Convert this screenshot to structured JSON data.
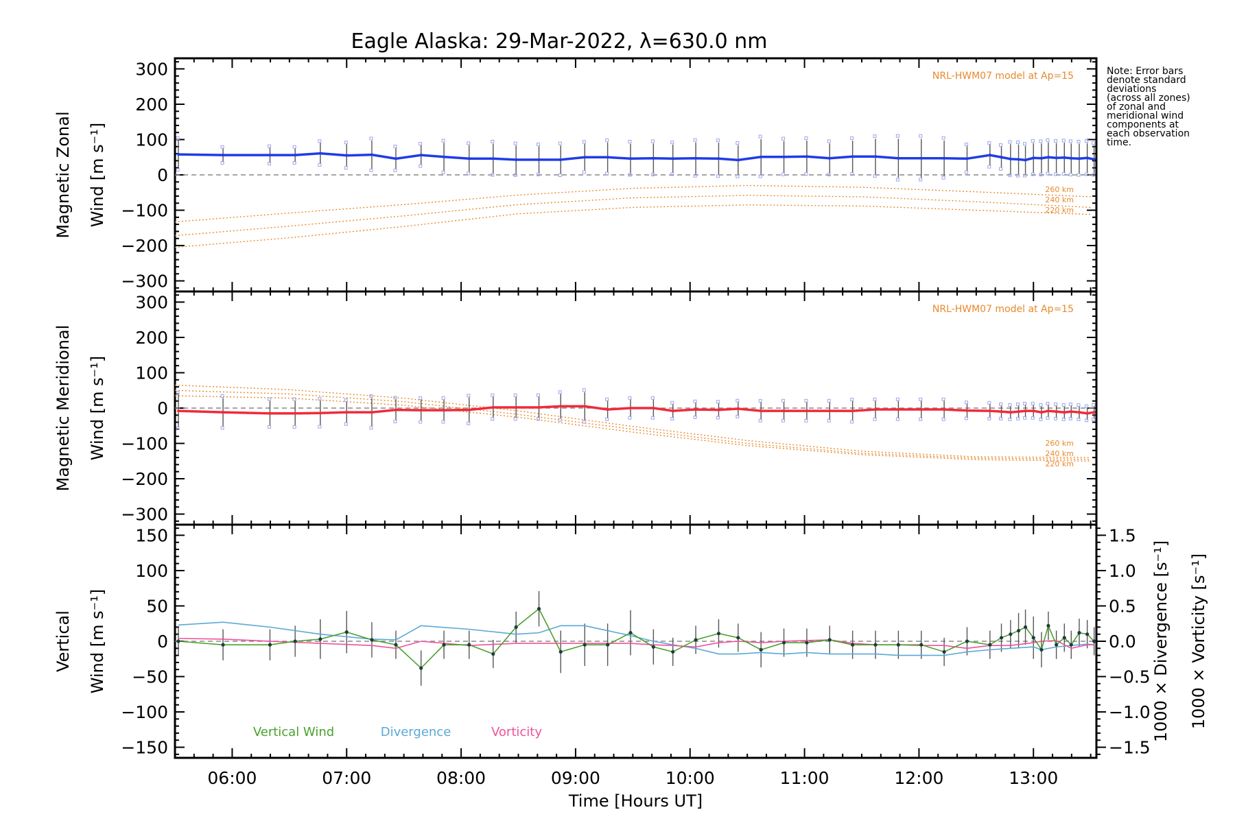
{
  "title": "Eagle Alaska: 29-Mar-2022, λ=630.0 nm",
  "note": [
    "Note: Error bars",
    "denote standard",
    "deviations",
    "(across all zones)",
    "of zonal and",
    "meridional wind",
    "components at",
    "each observation",
    "time."
  ],
  "colors": {
    "zonal": "#1f3be8",
    "meridional": "#f02a3a",
    "model": "#e8892b",
    "vertical": "#4aa02c",
    "divergence": "#5aa8d8",
    "vorticity": "#f0509a",
    "errorbar": "#555555",
    "zone": "#9aa6ee"
  },
  "chart_data": [
    {
      "type": "line",
      "panel": "zonal",
      "ylabel_line1": "Magnetic Zonal",
      "ylabel_line2": "Wind [m s⁻¹]",
      "model_label": "NRL-HWM07 model at Ap=15",
      "ylim": [
        -330,
        330
      ],
      "yticks": [
        "300",
        "200",
        "100",
        "0",
        "−100",
        "−200",
        "−300"
      ],
      "ytick_values": [
        300,
        200,
        100,
        0,
        -100,
        -200,
        -300
      ],
      "x": [
        5.53,
        5.92,
        6.33,
        6.55,
        6.77,
        7.0,
        7.22,
        7.43,
        7.65,
        7.85,
        8.07,
        8.28,
        8.48,
        8.68,
        8.87,
        9.08,
        9.28,
        9.48,
        9.68,
        9.85,
        10.05,
        10.25,
        10.42,
        10.62,
        10.82,
        11.02,
        11.22,
        11.42,
        11.62,
        11.82,
        12.02,
        12.22,
        12.42,
        12.62,
        12.72,
        12.8,
        12.87,
        12.93,
        13.0,
        13.07,
        13.13,
        13.2,
        13.27,
        13.33,
        13.4,
        13.47,
        13.53
      ],
      "values": [
        58,
        56,
        56,
        56,
        61,
        55,
        57,
        46,
        56,
        51,
        46,
        46,
        43,
        43,
        43,
        50,
        50,
        46,
        47,
        46,
        47,
        46,
        42,
        51,
        51,
        52,
        47,
        52,
        52,
        47,
        47,
        47,
        46,
        56,
        50,
        45,
        44,
        42,
        48,
        47,
        50,
        48,
        49,
        47,
        46,
        48,
        44
      ],
      "errors": [
        40,
        20,
        22,
        20,
        30,
        32,
        40,
        30,
        28,
        40,
        38,
        42,
        40,
        38,
        40,
        38,
        42,
        42,
        42,
        40,
        45,
        45,
        42,
        50,
        45,
        45,
        42,
        45,
        50,
        55,
        55,
        50,
        35,
        30,
        30,
        42,
        42,
        40,
        42,
        42,
        42,
        42,
        42,
        42,
        42,
        42,
        40
      ],
      "models": [
        {
          "name": "260 km",
          "x": [
            5.5,
            6.5,
            7.5,
            8.5,
            9.5,
            10.5,
            11.5,
            12.5,
            13.5
          ],
          "values": [
            -133,
            -108,
            -84,
            -57,
            -38,
            -30,
            -35,
            -48,
            -62
          ]
        },
        {
          "name": "240 km",
          "x": [
            5.5,
            6.5,
            7.5,
            8.5,
            9.5,
            10.5,
            11.5,
            12.5,
            13.5
          ],
          "values": [
            -172,
            -145,
            -116,
            -84,
            -65,
            -58,
            -62,
            -76,
            -92
          ]
        },
        {
          "name": "220 km",
          "x": [
            5.5,
            6.5,
            7.5,
            8.5,
            9.5,
            10.5,
            11.5,
            12.5,
            13.5
          ],
          "values": [
            -205,
            -178,
            -146,
            -110,
            -92,
            -85,
            -88,
            -100,
            -112
          ]
        }
      ]
    },
    {
      "type": "line",
      "panel": "meridional",
      "ylabel_line1": "Magnetic Meridional",
      "ylabel_line2": "Wind [m s⁻¹]",
      "model_label": "NRL-HWM07 model at Ap=15",
      "ylim": [
        -330,
        330
      ],
      "yticks": [
        "300",
        "200",
        "100",
        "0",
        "−100",
        "−200",
        "−300"
      ],
      "ytick_values": [
        300,
        200,
        100,
        0,
        -100,
        -200,
        -300
      ],
      "x": [
        5.53,
        5.92,
        6.33,
        6.55,
        6.77,
        7.0,
        7.22,
        7.43,
        7.65,
        7.85,
        8.07,
        8.28,
        8.48,
        8.68,
        8.87,
        9.08,
        9.28,
        9.48,
        9.68,
        9.85,
        10.05,
        10.25,
        10.42,
        10.62,
        10.82,
        11.02,
        11.22,
        11.42,
        11.62,
        11.82,
        12.02,
        12.22,
        12.42,
        12.62,
        12.72,
        12.8,
        12.87,
        12.93,
        13.0,
        13.07,
        13.13,
        13.2,
        13.27,
        13.33,
        13.4,
        13.47,
        13.53
      ],
      "values": [
        -8,
        -12,
        -15,
        -15,
        -14,
        -12,
        -12,
        -5,
        -6,
        -6,
        -5,
        2,
        2,
        2,
        5,
        5,
        -4,
        0,
        0,
        -8,
        -4,
        -5,
        -2,
        -8,
        -8,
        -8,
        -8,
        -8,
        -4,
        -4,
        -4,
        -4,
        -7,
        -8,
        -10,
        -12,
        -10,
        -8,
        -8,
        -12,
        -8,
        -10,
        -12,
        -10,
        -12,
        -15,
        -12
      ],
      "errors": [
        45,
        40,
        35,
        35,
        35,
        30,
        40,
        30,
        30,
        30,
        35,
        30,
        30,
        30,
        35,
        40,
        25,
        25,
        25,
        20,
        20,
        20,
        20,
        25,
        25,
        25,
        25,
        28,
        25,
        25,
        25,
        25,
        20,
        20,
        18,
        18,
        18,
        18,
        18,
        18,
        18,
        18,
        18,
        18,
        18,
        18,
        18
      ],
      "models": [
        {
          "name": "260 km",
          "x": [
            5.5,
            6.5,
            7.5,
            8.5,
            9.5,
            10.5,
            11.5,
            12.5,
            13.5
          ],
          "values": [
            65,
            52,
            28,
            -8,
            -52,
            -92,
            -122,
            -138,
            -140
          ]
        },
        {
          "name": "240 km",
          "x": [
            5.5,
            6.5,
            7.5,
            8.5,
            9.5,
            10.5,
            11.5,
            12.5,
            13.5
          ],
          "values": [
            50,
            40,
            18,
            -18,
            -60,
            -100,
            -128,
            -142,
            -145
          ]
        },
        {
          "name": "220 km",
          "x": [
            5.5,
            6.5,
            7.5,
            8.5,
            9.5,
            10.5,
            11.5,
            12.5,
            13.5
          ],
          "values": [
            35,
            28,
            8,
            -26,
            -68,
            -106,
            -132,
            -146,
            -150
          ]
        }
      ]
    },
    {
      "type": "line",
      "panel": "vertical",
      "ylabel_line1": "Vertical",
      "ylabel_line2": "Wind [m s⁻¹]",
      "y2label_div": "1000 × Divergence [s⁻¹]",
      "y2label_vort": "1000 × Vorticity [s⁻¹]",
      "ylim": [
        -165,
        165
      ],
      "yticks": [
        "150",
        "100",
        "50",
        "0",
        "−50",
        "−100",
        "−150"
      ],
      "ytick_values": [
        150,
        100,
        50,
        0,
        -50,
        -100,
        -150
      ],
      "y2lim": [
        -1.65,
        1.65
      ],
      "y2ticks": [
        "1.5",
        "1.0",
        "0.5",
        "0.0",
        "−0.5",
        "−1.0",
        "−1.5"
      ],
      "y2tick_values": [
        1.5,
        1.0,
        0.5,
        0.0,
        -0.5,
        -1.0,
        -1.5
      ],
      "xlabel": "Time [Hours UT]",
      "xticks": [
        "06:00",
        "07:00",
        "08:00",
        "09:00",
        "10:00",
        "11:00",
        "12:00",
        "13:00"
      ],
      "xtick_values": [
        6,
        7,
        8,
        9,
        10,
        11,
        12,
        13
      ],
      "xlim": [
        5.5,
        13.55
      ],
      "legend": [
        "Vertical Wind",
        "Divergence",
        "Vorticity"
      ],
      "x": [
        5.53,
        5.92,
        6.33,
        6.55,
        6.77,
        7.0,
        7.22,
        7.43,
        7.65,
        7.85,
        8.07,
        8.28,
        8.48,
        8.68,
        8.87,
        9.08,
        9.28,
        9.48,
        9.68,
        9.85,
        10.05,
        10.25,
        10.42,
        10.62,
        10.82,
        11.02,
        11.22,
        11.42,
        11.62,
        11.82,
        12.02,
        12.22,
        12.42,
        12.62,
        12.72,
        12.8,
        12.87,
        12.93,
        13.0,
        13.07,
        13.13,
        13.2,
        13.27,
        13.33,
        13.4,
        13.47,
        13.53
      ],
      "values": [
        0,
        -5,
        -5,
        0,
        3,
        13,
        2,
        -5,
        -38,
        -5,
        -5,
        -18,
        20,
        46,
        -15,
        -5,
        -5,
        12,
        -8,
        -15,
        2,
        11,
        5,
        -12,
        -2,
        -2,
        2,
        -5,
        -5,
        -5,
        -5,
        -15,
        0,
        -5,
        5,
        10,
        15,
        20,
        5,
        -12,
        22,
        -5,
        5,
        -5,
        12,
        10,
        0
      ],
      "errors": [
        20,
        22,
        22,
        22,
        28,
        30,
        25,
        20,
        25,
        20,
        20,
        20,
        22,
        25,
        30,
        30,
        30,
        32,
        25,
        20,
        20,
        20,
        20,
        25,
        20,
        20,
        20,
        20,
        20,
        20,
        20,
        20,
        20,
        20,
        20,
        20,
        25,
        25,
        30,
        25,
        20,
        20,
        20,
        20,
        20,
        20,
        20
      ],
      "divergence": {
        "x": [
          5.53,
          5.92,
          6.33,
          6.77,
          7.22,
          7.43,
          7.65,
          8.07,
          8.48,
          8.68,
          8.87,
          9.08,
          9.28,
          9.48,
          9.68,
          9.85,
          10.05,
          10.25,
          10.42,
          10.62,
          10.82,
          11.02,
          11.22,
          11.42,
          11.62,
          11.82,
          12.02,
          12.22,
          12.42,
          12.62,
          12.8,
          13.0,
          13.07,
          13.2,
          13.33,
          13.47,
          13.53
        ],
        "values": [
          0.23,
          0.27,
          0.2,
          0.1,
          0.03,
          0.02,
          0.22,
          0.17,
          0.1,
          0.12,
          0.22,
          0.22,
          0.15,
          0.08,
          0.0,
          -0.05,
          -0.1,
          -0.18,
          -0.18,
          -0.16,
          -0.18,
          -0.16,
          -0.18,
          -0.18,
          -0.18,
          -0.2,
          -0.2,
          -0.2,
          -0.15,
          -0.12,
          -0.1,
          -0.08,
          -0.12,
          -0.08,
          -0.06,
          -0.04,
          -0.05
        ]
      },
      "vorticity": {
        "x": [
          5.53,
          5.92,
          6.33,
          6.77,
          7.22,
          7.43,
          7.65,
          8.07,
          8.48,
          8.68,
          8.87,
          9.08,
          9.28,
          9.48,
          9.68,
          9.85,
          10.05,
          10.25,
          10.42,
          10.62,
          10.82,
          11.02,
          11.22,
          11.42,
          11.62,
          11.82,
          12.02,
          12.22,
          12.42,
          12.62,
          12.8,
          13.0,
          13.07,
          13.2,
          13.33,
          13.47,
          13.53
        ],
        "values": [
          0.04,
          0.03,
          0.0,
          -0.03,
          -0.06,
          -0.1,
          0.0,
          -0.06,
          -0.03,
          -0.03,
          -0.03,
          -0.03,
          -0.03,
          -0.03,
          -0.05,
          -0.06,
          -0.08,
          -0.02,
          0.0,
          -0.02,
          0.0,
          0.01,
          0.02,
          -0.03,
          -0.05,
          -0.05,
          -0.06,
          -0.06,
          -0.1,
          -0.06,
          -0.06,
          -0.02,
          0.0,
          0.01,
          -0.1,
          -0.05,
          -0.05
        ]
      }
    }
  ]
}
